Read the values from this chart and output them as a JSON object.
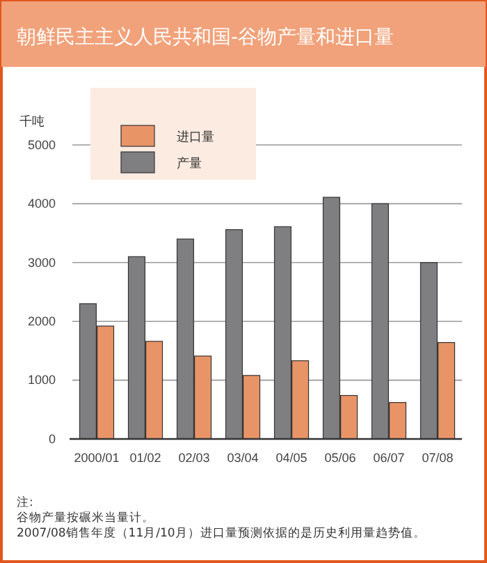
{
  "chart_data": {
    "type": "bar",
    "title": "朝鲜民主主义人民共和国-谷物产量和进口量",
    "ylabel": "千吨",
    "categories": [
      "2000/01",
      "01/02",
      "02/03",
      "03/04",
      "04/05",
      "05/06",
      "06/07",
      "07/08"
    ],
    "series": [
      {
        "name": "产量",
        "color": "#7f7f82",
        "values": [
          2300,
          3100,
          3400,
          3560,
          3610,
          4110,
          4000,
          3000
        ]
      },
      {
        "name": "进口量",
        "color": "#e99467",
        "values": [
          1920,
          1660,
          1410,
          1080,
          1330,
          740,
          620,
          1640
        ]
      }
    ],
    "ylim": [
      0,
      5000
    ],
    "yticks": [
      0,
      1000,
      2000,
      3000,
      4000,
      5000
    ],
    "grid": "y",
    "legend": "top left",
    "annotations": [
      "注:",
      "谷物产量按碾米当量计。",
      "2007/08销售年度（11月/10月）进口量预测依据的是历史利用量趋势值。"
    ]
  }
}
